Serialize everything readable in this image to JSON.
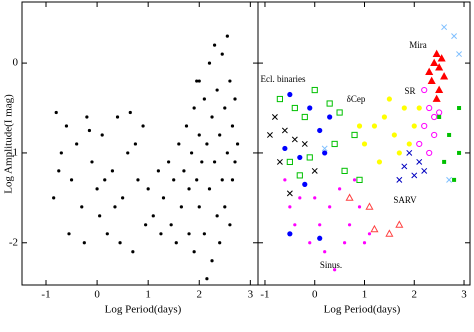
{
  "chart_data": [
    {
      "type": "scatter",
      "xlabel": "Log Period(days)",
      "ylabel": "Log Amplitude(I mag)",
      "xlim": [
        -1.47,
        3.15
      ],
      "ylim": [
        -2.47,
        0.68
      ],
      "xticks": [
        -1,
        0,
        1,
        2,
        3
      ],
      "yticks": [
        0,
        -1,
        -2
      ],
      "series": [
        {
          "color": "#000000",
          "marker": "dot",
          "x": [
            -0.8,
            -0.6,
            -0.7,
            -0.5,
            -0.4,
            -0.3,
            -0.2,
            -0.1,
            0,
            0.1,
            0.2,
            0.3,
            0.4,
            0.5,
            0.6,
            0.7,
            0.8,
            0.9,
            -0.85,
            -0.55,
            -0.25,
            0.05,
            0.35,
            0.65,
            0.95,
            -0.75,
            -0.15,
            0.15,
            0.45,
            0.75,
            1.0,
            1.1,
            1.2,
            1.25,
            1.3,
            1.4,
            1.45,
            1.5,
            1.55,
            1.6,
            1.65,
            1.7,
            1.75,
            1.8,
            1.8,
            1.85,
            1.9,
            1.9,
            1.95,
            2.0,
            2.0,
            2.0,
            2.05,
            2.1,
            2.1,
            2.15,
            2.2,
            2.2,
            2.25,
            2.25,
            2.3,
            2.3,
            2.35,
            2.35,
            2.4,
            2.4,
            2.45,
            2.45,
            2.5,
            2.5,
            2.55,
            2.55,
            2.6,
            2.6,
            2.65,
            2.65,
            2.7,
            2.7,
            2.75,
            2.15,
            1.95
          ],
          "y": [
            -0.55,
            -0.7,
            -1.0,
            -1.3,
            -0.9,
            -1.6,
            -0.6,
            -1.1,
            -1.4,
            -0.8,
            -1.9,
            -1.2,
            -0.6,
            -1.5,
            -1.0,
            -2.1,
            -1.3,
            -0.7,
            -1.5,
            -1.9,
            -2.0,
            -1.7,
            -1.6,
            -0.55,
            -1.8,
            -1.2,
            -0.75,
            -1.3,
            -2.0,
            -0.9,
            -1.4,
            -1.7,
            -1.2,
            -1.9,
            -1.5,
            -1.1,
            -1.8,
            -1.3,
            -2.0,
            -0.9,
            -1.6,
            -1.2,
            -0.7,
            -1.9,
            -1.4,
            -1.0,
            -0.5,
            -2.1,
            -1.3,
            -0.2,
            -0.8,
            -1.6,
            -1.1,
            -0.4,
            -1.9,
            -0.9,
            0.0,
            -1.4,
            -0.6,
            -2.2,
            -1.1,
            0.2,
            -0.3,
            -1.7,
            -0.8,
            -2.0,
            0.1,
            -1.3,
            -0.5,
            -1.6,
            0.3,
            -1.0,
            -0.2,
            -1.8,
            -0.7,
            -1.3,
            -0.4,
            -1.1,
            -0.9,
            -2.4,
            -0.2
          ]
        }
      ]
    },
    {
      "type": "scatter",
      "xlabel": "Log Period(days)",
      "xlim": [
        -1.14,
        3.12
      ],
      "ylim": [
        -2.47,
        0.68
      ],
      "xticks": [
        -1,
        0,
        1,
        2,
        3
      ],
      "yticks": [
        0,
        -1,
        -2
      ],
      "ytick_labels": false,
      "annotations": [
        "Mira",
        "SR",
        "Ecl. binaries",
        "δCep",
        "SARV",
        "Sinus."
      ],
      "series": [
        {
          "color": "#0000ff",
          "marker": "circle",
          "x": [
            -0.5,
            -0.1,
            0.3,
            -0.6,
            0.1,
            -0.3,
            0.2,
            -0.2,
            -0.5,
            0.1
          ],
          "y": [
            -0.35,
            -0.5,
            -0.6,
            -0.95,
            -0.75,
            -1.05,
            -1.0,
            -1.35,
            -1.9,
            -1.95
          ]
        },
        {
          "color": "#00c000",
          "marker": "open-square",
          "x": [
            -0.7,
            -0.4,
            -0.2,
            0,
            0.3,
            0.5,
            -0.5,
            -0.1,
            0.4,
            0.8,
            -0.3,
            0.6,
            0.9
          ],
          "y": [
            -0.4,
            -0.5,
            -0.6,
            -0.3,
            -0.45,
            -0.55,
            -1.1,
            -1.05,
            -0.9,
            -0.8,
            -1.25,
            -1.2,
            -1.3
          ]
        },
        {
          "color": "#ffff00",
          "marker": "circle",
          "x": [
            1.0,
            1.2,
            1.4,
            1.5,
            1.6,
            1.8,
            2.0,
            1.3,
            1.7,
            1.9,
            0.9,
            2.1
          ],
          "y": [
            -0.9,
            -0.7,
            -0.6,
            -0.4,
            -0.8,
            -0.5,
            -0.7,
            -1.1,
            -1.0,
            -0.9,
            -0.7,
            -0.5
          ]
        },
        {
          "color": "#ff00ff",
          "marker": "dot",
          "x": [
            -0.6,
            -0.3,
            0,
            0.3,
            0.5,
            0.7,
            0.9,
            -0.4,
            0.2,
            0.6,
            1.0,
            0.4,
            -0.1,
            0.8,
            1.1,
            -0.5,
            0.1
          ],
          "y": [
            -1.3,
            -1.5,
            -1.5,
            -1.6,
            -1.4,
            -1.8,
            -1.6,
            -1.8,
            -2.1,
            -2.0,
            -2.0,
            -2.3,
            -2.0,
            -1.3,
            -1.9,
            -1.6,
            -1.8
          ]
        },
        {
          "color": "#ff0000",
          "marker": "triangle",
          "x": [
            2.3,
            2.4,
            2.45,
            2.5,
            2.55,
            2.35,
            2.6,
            2.5,
            2.45
          ],
          "y": [
            -0.1,
            0.0,
            0.1,
            -0.05,
            0.05,
            -0.2,
            -0.15,
            -0.3,
            -0.4
          ]
        },
        {
          "color": "#ff00ff",
          "marker": "open-circle",
          "x": [
            2.2,
            2.3,
            2.4,
            2.2,
            2.4,
            2.1,
            2.3,
            2.5
          ],
          "y": [
            -0.3,
            -0.5,
            -0.6,
            -0.7,
            -0.8,
            -0.9,
            -1.0,
            -0.55
          ]
        },
        {
          "color": "#0000c0",
          "marker": "cross",
          "x": [
            1.9,
            2.1,
            2.0,
            1.7,
            2.2,
            1.8
          ],
          "y": [
            -1.0,
            -1.1,
            -1.25,
            -1.3,
            -1.2,
            -1.15
          ]
        },
        {
          "color": "#000000",
          "marker": "cross",
          "x": [
            -0.8,
            -0.6,
            -0.4,
            -0.7,
            -0.2,
            -0.5,
            -0.9,
            0
          ],
          "y": [
            -0.6,
            -0.75,
            -0.85,
            -1.1,
            -0.9,
            -1.45,
            -0.8,
            -1.2
          ]
        },
        {
          "color": "#80c0ff",
          "marker": "cross",
          "x": [
            2.6,
            2.8,
            2.9,
            2.7,
            0.2
          ],
          "y": [
            0.4,
            0.3,
            0.1,
            -1.3,
            -0.95
          ]
        },
        {
          "color": "#ff4040",
          "marker": "open-triangle",
          "x": [
            0.7,
            1.1,
            1.5,
            1.7,
            1.2
          ],
          "y": [
            -1.5,
            -1.6,
            -1.9,
            -1.8,
            -1.85
          ]
        },
        {
          "color": "#00c000",
          "marker": "square",
          "x": [
            2.5,
            2.7,
            2.9,
            2.8,
            2.6,
            2.9
          ],
          "y": [
            -0.6,
            -0.8,
            -1.0,
            -1.3,
            -1.1,
            -0.5
          ]
        }
      ]
    }
  ]
}
